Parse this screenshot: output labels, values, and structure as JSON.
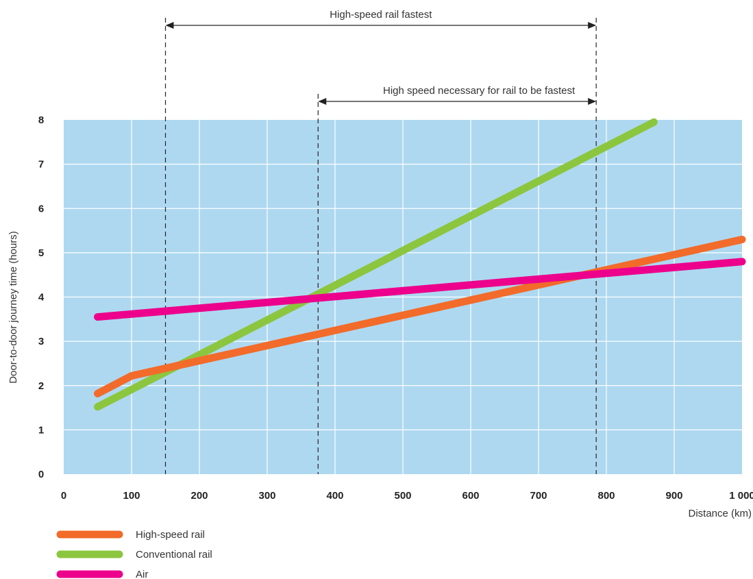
{
  "chart_data": {
    "type": "line",
    "xlabel": "Distance (km)",
    "ylabel": "Door-to-door journey time (hours)",
    "xlim": [
      0,
      1000
    ],
    "ylim": [
      0,
      8
    ],
    "xticks": [
      0,
      100,
      200,
      300,
      400,
      500,
      600,
      700,
      800,
      900,
      1000
    ],
    "xtick_labels": [
      "0",
      "100",
      "200",
      "300",
      "400",
      "500",
      "600",
      "700",
      "800",
      "900",
      "1 000"
    ],
    "yticks": [
      0,
      1,
      2,
      3,
      4,
      5,
      6,
      7,
      8
    ],
    "ytick_labels": [
      "0",
      "1",
      "2",
      "3",
      "4",
      "5",
      "6",
      "7",
      "8"
    ],
    "grid": true,
    "plot_background": "#aed8f0",
    "legend_position": "bottom-left",
    "series": [
      {
        "name": "High-speed rail",
        "color": "#f26b2a",
        "x": [
          50,
          100,
          1000
        ],
        "y": [
          1.82,
          2.22,
          5.3
        ]
      },
      {
        "name": "Conventional rail",
        "color": "#8cc63f",
        "x": [
          50,
          870
        ],
        "y": [
          1.52,
          7.95
        ]
      },
      {
        "name": "Air",
        "color": "#ec008c",
        "x": [
          50,
          1000
        ],
        "y": [
          3.55,
          4.8
        ]
      }
    ],
    "annotations": [
      {
        "text": "High-speed rail fastest",
        "x_from": 150,
        "x_to": 785
      },
      {
        "text": "High speed necessary for rail to be fastest",
        "x_from": 375,
        "x_to": 785
      }
    ]
  }
}
